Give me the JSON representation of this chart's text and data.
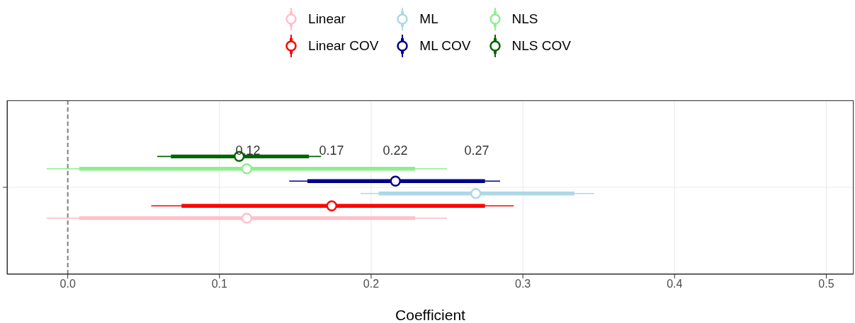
{
  "chart_data": {
    "type": "scatter",
    "orientation": "horizontal",
    "xlabel": "Coefficient",
    "categories": [
      null
    ],
    "series": [
      {
        "type": "bar",
        "color": "#ffc0cb",
        "base": [
          0.0075
        ],
        "values": [
          0.2215
        ]
      },
      {
        "name": "Linear",
        "color": "#ffc0cb",
        "values": [
          0.118
        ],
        "errors": [
          [
            -0.014,
            0.25
          ]
        ]
      },
      {
        "type": "bar",
        "color": "#ff0000",
        "base": [
          0.075
        ],
        "values": [
          0.2
        ]
      },
      {
        "name": "Linear COV",
        "color": "#ff0000",
        "values": [
          0.174
        ],
        "errors": [
          [
            0.055,
            0.294
          ]
        ]
      },
      {
        "type": "bar",
        "color": "#add8e6",
        "base": [
          0.205
        ],
        "values": [
          0.129
        ]
      },
      {
        "name": "ML",
        "color": "#add8e6",
        "values": [
          0.269
        ],
        "errors": [
          [
            0.193,
            0.347
          ]
        ]
      },
      {
        "type": "bar",
        "color": "#00008b",
        "base": [
          0.158
        ],
        "values": [
          0.117
        ]
      },
      {
        "name": "ML COV",
        "color": "#00008b",
        "values": [
          0.216
        ],
        "errors": [
          [
            0.146,
            0.285
          ]
        ]
      },
      {
        "type": "bar",
        "color": "#90ee90",
        "base": [
          0.0075
        ],
        "values": [
          0.2215
        ]
      },
      {
        "name": "NLS",
        "color": "#90ee90",
        "values": [
          0.118
        ],
        "errors": [
          [
            -0.014,
            0.25
          ]
        ]
      },
      {
        "type": "bar",
        "color": "#006400",
        "base": [
          0.068
        ],
        "values": [
          0.091
        ]
      },
      {
        "name": "NLS COV",
        "color": "#006400",
        "values": [
          0.113
        ],
        "errors": [
          [
            0.059,
            0.167
          ]
        ]
      }
    ],
    "xlim": [
      -0.04,
      0.518
    ],
    "xticks": [
      {
        "value": 0,
        "label": "0.0"
      },
      0.1,
      0.2,
      0.3,
      0.4,
      0.5
    ],
    "ref_lines": [
      {
        "axis": "x",
        "value": 0,
        "color": "#808080",
        "line_style": "dashed"
      }
    ],
    "annotations": [
      "0.12",
      "0.17",
      "0.22",
      "0.27"
    ],
    "grid": true,
    "legend": "top",
    "marker": "circle"
  }
}
